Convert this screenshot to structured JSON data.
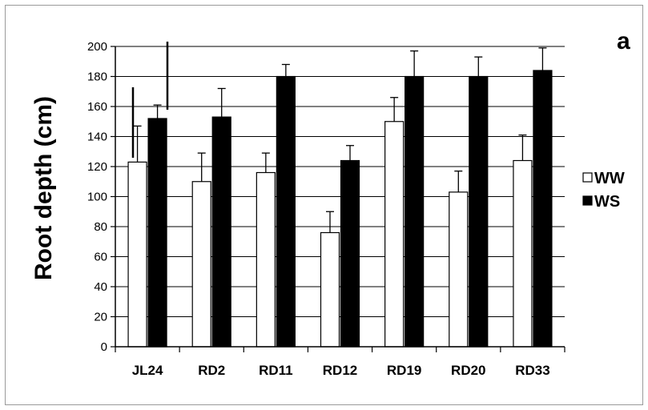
{
  "panel_label": "a",
  "colors": {
    "WW": "#ffffff",
    "WS": "#000000",
    "grid": "#000000",
    "frame": "#9a9a9a"
  },
  "chart_data": {
    "type": "bar",
    "ylabel": "Root depth (cm)",
    "xlabel": "",
    "ylim": [
      0,
      200
    ],
    "yticks": [
      0,
      20,
      40,
      60,
      80,
      100,
      120,
      140,
      160,
      180,
      200
    ],
    "grid": true,
    "legend_position": "right",
    "categories": [
      "JL24",
      "RD2",
      "RD11",
      "RD12",
      "RD19",
      "RD20",
      "RD33"
    ],
    "series": [
      {
        "name": "WW",
        "values": [
          123,
          110,
          116,
          76,
          150,
          103,
          124
        ],
        "errors": [
          24,
          19,
          13,
          14,
          16,
          14,
          17
        ]
      },
      {
        "name": "WS",
        "values": [
          152,
          153,
          180,
          124,
          180,
          180,
          184
        ],
        "errors": [
          9,
          19,
          8,
          10,
          17,
          13,
          15
        ]
      }
    ]
  }
}
